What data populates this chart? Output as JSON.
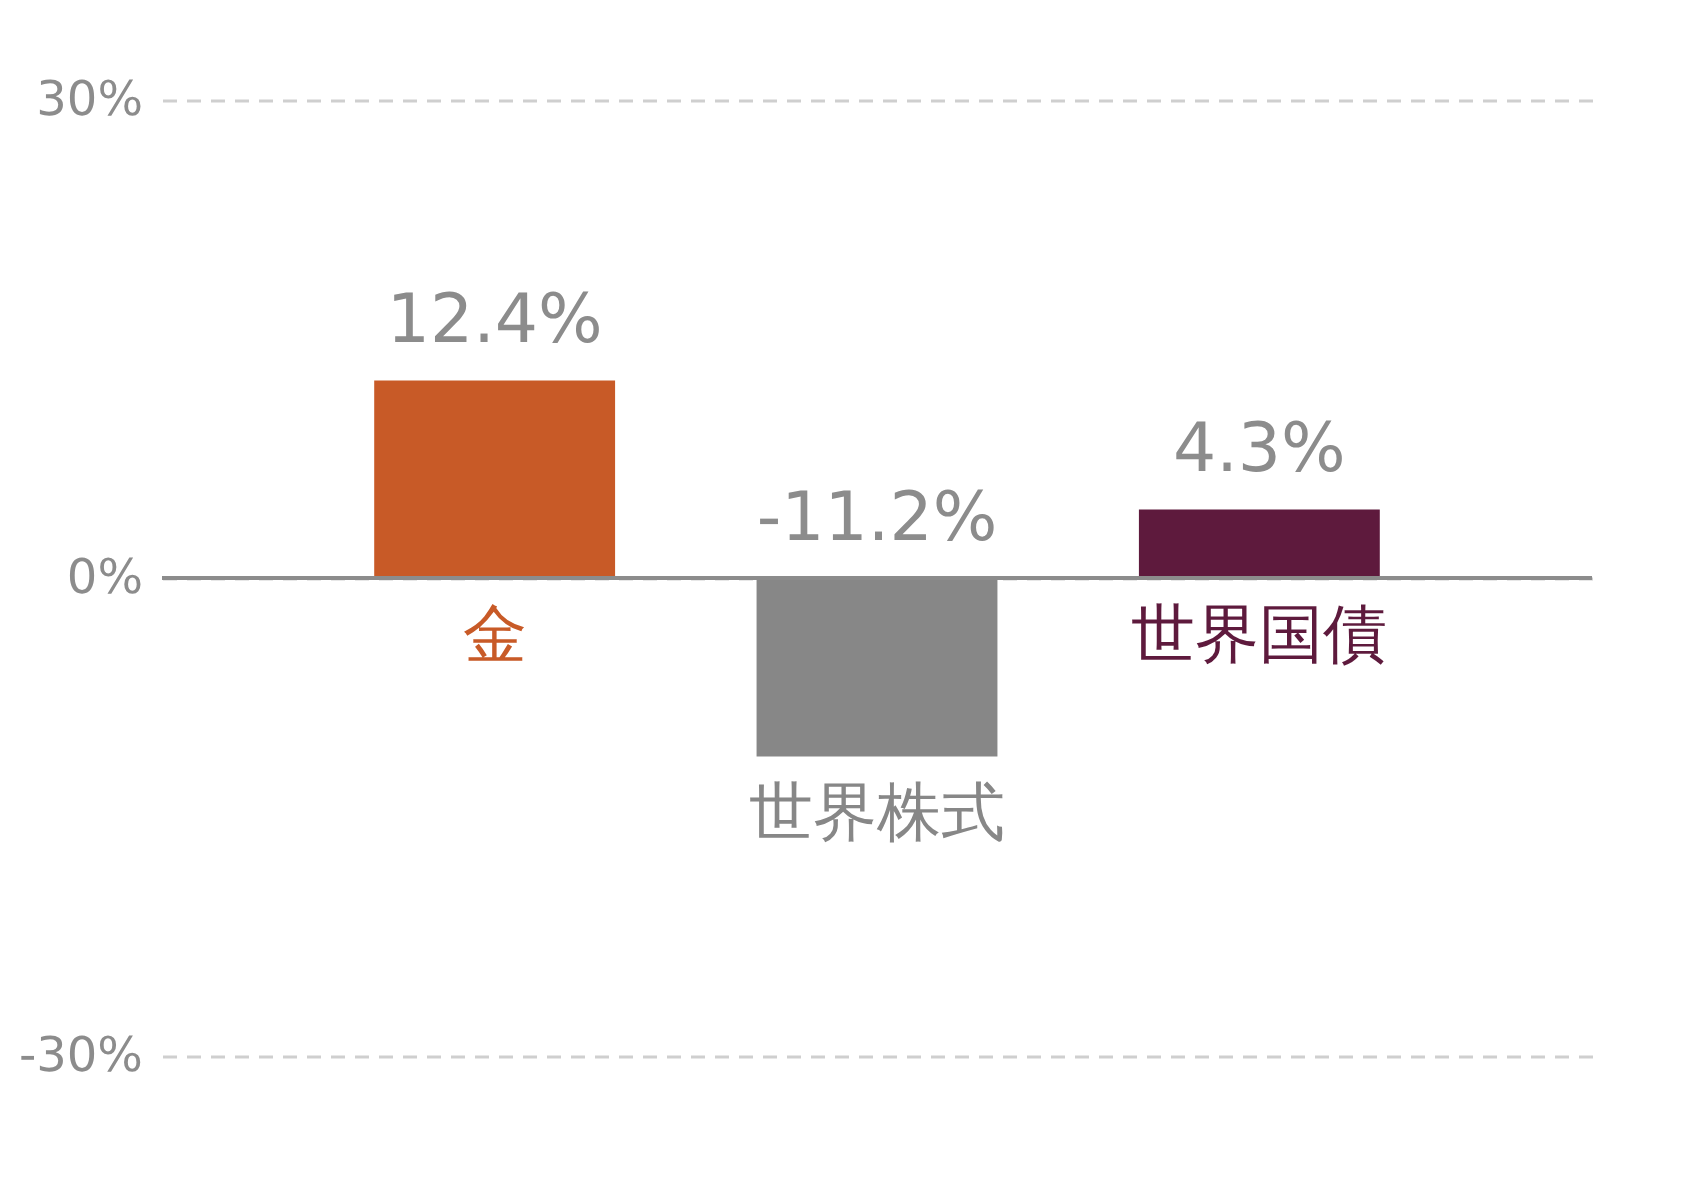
{
  "chart_data": {
    "type": "bar",
    "categories": [
      "金",
      "世界株式",
      "世界国債"
    ],
    "values": [
      12.4,
      -11.2,
      4.3
    ],
    "colors": [
      "#c85a27",
      "#878787",
      "#5e1a3d"
    ],
    "value_labels": [
      "12.4%",
      "-11.2%",
      "4.3%"
    ],
    "ylim": [
      -30,
      30
    ],
    "yticks": [
      {
        "value": -30,
        "label": "-30%"
      },
      {
        "value": 0,
        "label": "0%"
      },
      {
        "value": 30,
        "label": "30%"
      }
    ],
    "grid": "y"
  }
}
